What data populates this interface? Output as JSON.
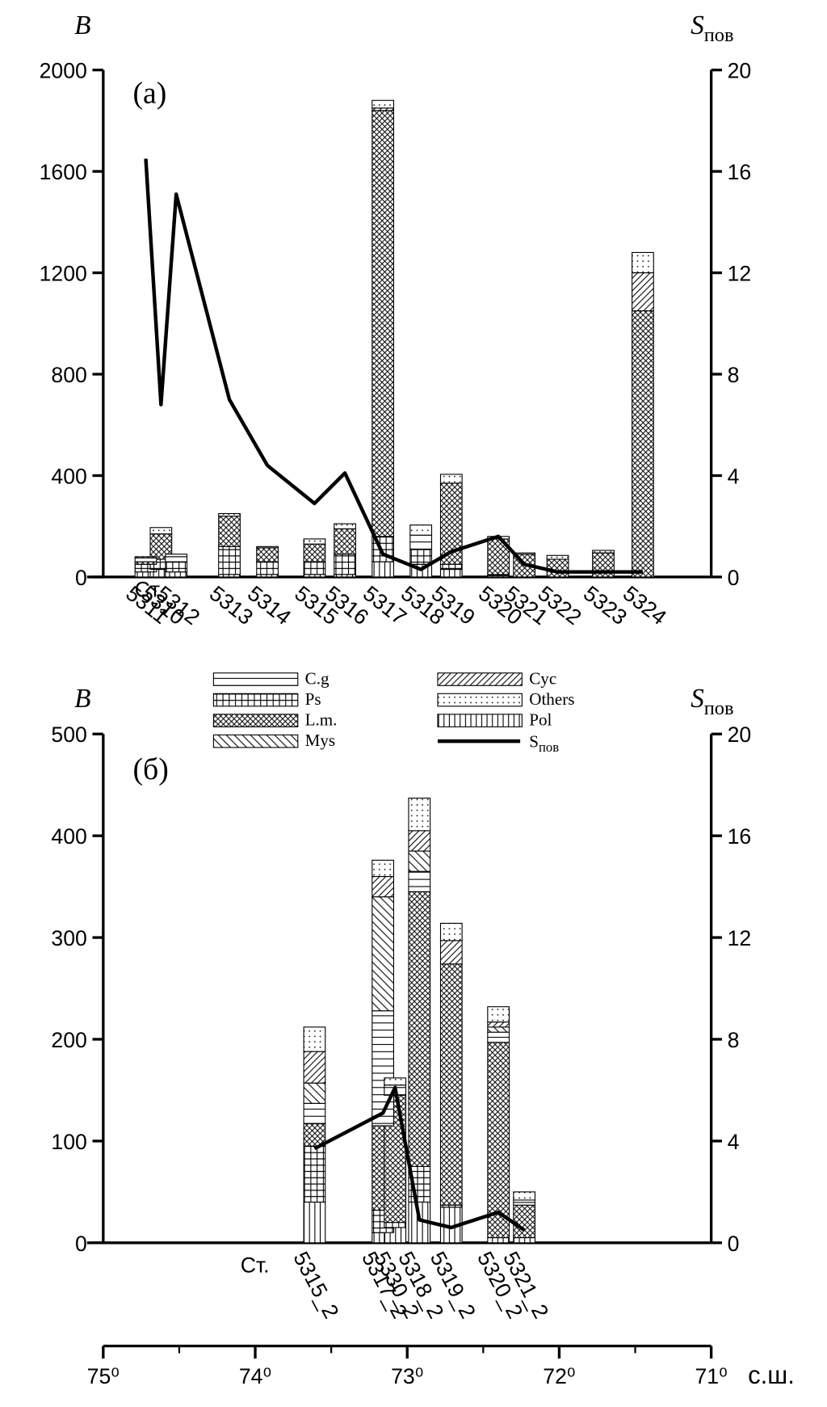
{
  "chart_data": [
    {
      "type": "bar",
      "panel_label": "(а)",
      "y_label": "B",
      "y2_label": "S",
      "y2_label_subscript": "пов",
      "x_label": "Ст.",
      "categories": [
        "5311",
        "5310",
        "5312",
        "5313",
        "5314",
        "5315",
        "5316",
        "5317",
        "5318",
        "5319",
        "5320",
        "5321",
        "5322",
        "5323",
        "5324"
      ],
      "x": [
        74.72,
        74.62,
        74.52,
        74.17,
        73.92,
        73.61,
        73.41,
        73.16,
        72.91,
        72.71,
        72.4,
        72.23,
        72.01,
        71.71,
        71.45
      ],
      "ylim": [
        0,
        2000
      ],
      "yticks": [
        0,
        400,
        800,
        1200,
        1600,
        2000
      ],
      "y2lim": [
        0,
        20
      ],
      "y2ticks": [
        0,
        4,
        8,
        12,
        16,
        20
      ],
      "series": [
        {
          "pattern": "vertical",
          "values": [
            20,
            30,
            20,
            10,
            10,
            10,
            10,
            60,
            50,
            30,
            5,
            0,
            0,
            0,
            0
          ]
        },
        {
          "pattern": "grid",
          "values": [
            30,
            40,
            40,
            110,
            50,
            50,
            80,
            100,
            60,
            20,
            5,
            0,
            0,
            0,
            0
          ]
        },
        {
          "pattern": "crosshatch",
          "values": [
            10,
            100,
            0,
            120,
            55,
            70,
            100,
            1680,
            0,
            320,
            140,
            90,
            70,
            95,
            1050
          ]
        },
        {
          "pattern": "horizontal",
          "values": [
            15,
            0,
            20,
            0,
            0,
            0,
            0,
            0,
            55,
            0,
            0,
            0,
            0,
            0,
            0
          ]
        },
        {
          "pattern": "backdiag",
          "values": [
            0,
            0,
            0,
            0,
            0,
            0,
            0,
            0,
            0,
            0,
            0,
            0,
            0,
            0,
            0
          ]
        },
        {
          "pattern": "diag",
          "values": [
            0,
            0,
            0,
            0,
            0,
            0,
            0,
            10,
            0,
            0,
            0,
            0,
            0,
            0,
            150
          ]
        },
        {
          "pattern": "dots",
          "values": [
            5,
            25,
            10,
            10,
            5,
            20,
            20,
            30,
            40,
            35,
            10,
            5,
            15,
            10,
            80
          ]
        },
        {
          "type": "line",
          "axis": "y2",
          "color": "#000000",
          "values": [
            16.5,
            6.8,
            15.1,
            7,
            4.4,
            2.9,
            4.1,
            0.9,
            0.3,
            1.0,
            1.6,
            0.5,
            0.2,
            0.2,
            0.2
          ]
        }
      ]
    },
    {
      "type": "bar",
      "panel_label": "(б)",
      "y_label": "B",
      "y2_label": "S",
      "y2_label_subscript": "пов",
      "x_label": "Ст.",
      "categories": [
        "5315_2",
        "5317_2",
        "5330_2",
        "5318_2",
        "5319_2",
        "5320_2",
        "5321_2"
      ],
      "x": [
        73.61,
        73.16,
        73.08,
        72.92,
        72.71,
        72.4,
        72.23
      ],
      "ylim": [
        0,
        500
      ],
      "yticks": [
        0,
        100,
        200,
        300,
        400,
        500
      ],
      "y2lim": [
        0,
        20
      ],
      "y2ticks": [
        0,
        4,
        8,
        12,
        16,
        20
      ],
      "xlim": [
        75,
        71
      ],
      "xlabel": "с.ш.",
      "xticks": [
        {
          "value": 75,
          "label": "75⁰"
        },
        {
          "value": 74,
          "label": "74⁰"
        },
        {
          "value": 73,
          "label": "73⁰"
        },
        {
          "value": 72,
          "label": "72⁰"
        },
        {
          "value": 71,
          "label": "71⁰"
        }
      ],
      "xminorticks": [
        74.5,
        73.5,
        72.5,
        71.5
      ],
      "series": [
        {
          "name": "Pol",
          "pattern": "vertical",
          "values": [
            40,
            10,
            15,
            40,
            35,
            5,
            5
          ]
        },
        {
          "name": "Ps",
          "pattern": "grid",
          "values": [
            55,
            22,
            5,
            35,
            2,
            0,
            0
          ]
        },
        {
          "name": "L.m.",
          "pattern": "crosshatch",
          "values": [
            22,
            83,
            125,
            270,
            237,
            192,
            32
          ]
        },
        {
          "name": "C.g",
          "pattern": "horizontal",
          "values": [
            20,
            113,
            10,
            20,
            0,
            10,
            5
          ]
        },
        {
          "name": "Mys",
          "pattern": "backdiag",
          "values": [
            20,
            112,
            0,
            20,
            0,
            5,
            0
          ]
        },
        {
          "name": "Cyc",
          "pattern": "diag",
          "values": [
            31,
            20,
            0,
            20,
            23,
            5,
            0
          ]
        },
        {
          "name": "Others",
          "pattern": "dots",
          "values": [
            24,
            16,
            7,
            32,
            17,
            15,
            8
          ]
        },
        {
          "type": "line",
          "axis": "y2",
          "color": "#000000",
          "name": "S",
          "name_subscript": "пов",
          "values": [
            3.7,
            5.1,
            6.1,
            0.9,
            0.6,
            1.2,
            0.5
          ]
        }
      ]
    }
  ]
}
